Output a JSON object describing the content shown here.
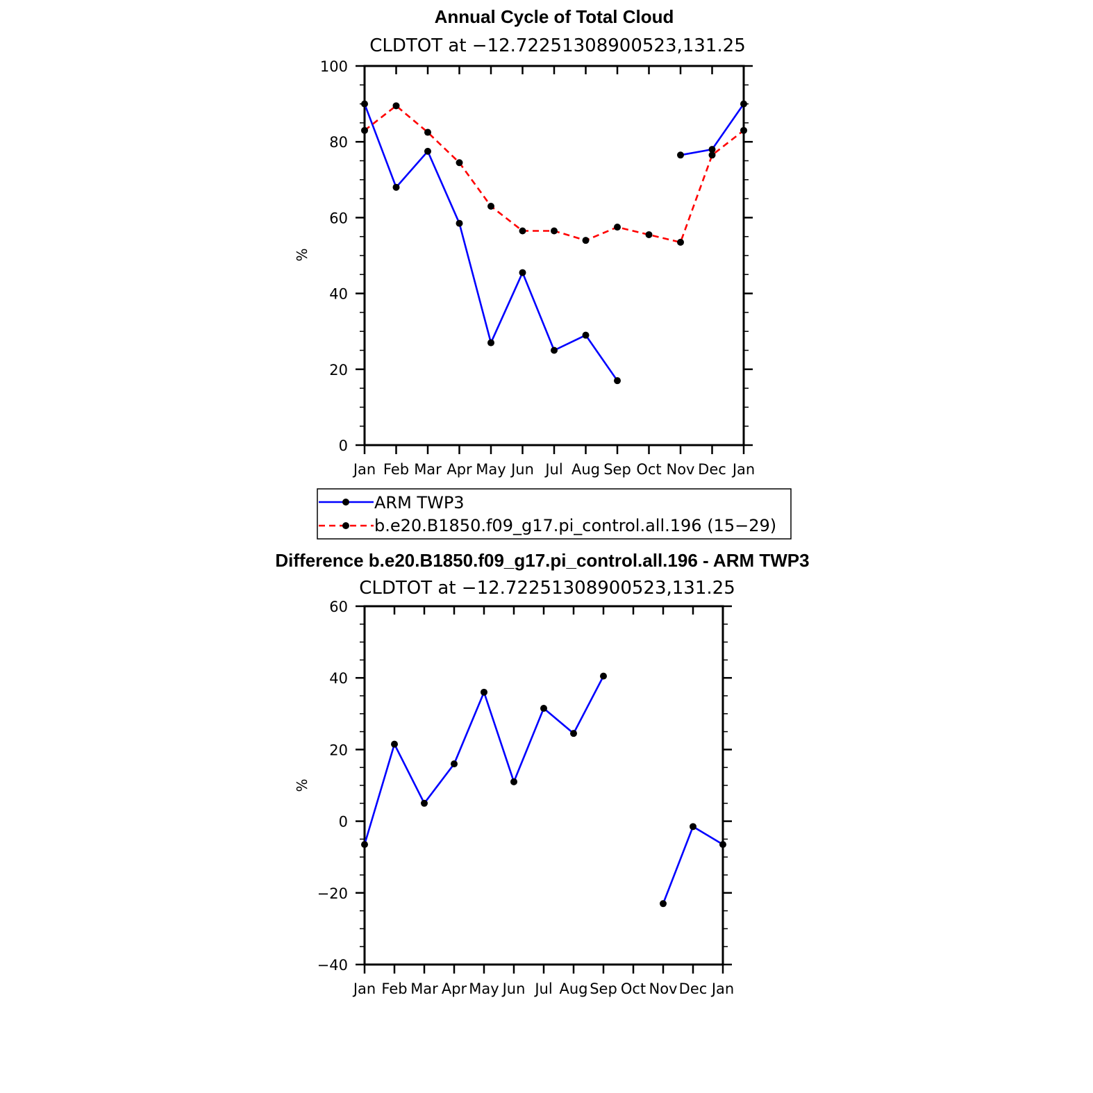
{
  "chart_data": [
    {
      "type": "line",
      "title": "Annual Cycle of Total Cloud",
      "subtitle": "CLDTOT at −12.72251308900523,131.25",
      "ylabel": "%",
      "categories": [
        "Jan",
        "Feb",
        "Mar",
        "Apr",
        "May",
        "Jun",
        "Jul",
        "Aug",
        "Sep",
        "Oct",
        "Nov",
        "Dec",
        "Jan"
      ],
      "ylim": [
        0,
        100
      ],
      "yticks": [
        0,
        20,
        40,
        60,
        80,
        100
      ],
      "ytick_labels": [
        "0",
        "20",
        "40",
        "60",
        "80",
        "100"
      ],
      "series": [
        {
          "name": "ARM TWP3",
          "color": "#0000ff",
          "dash": "solid",
          "values": [
            90,
            68,
            77.5,
            58.5,
            27,
            45.5,
            25,
            29,
            17,
            null,
            76.5,
            78,
            90
          ]
        },
        {
          "name": "b.e20.B1850.f09_g17.pi_control.all.196 (15−29)",
          "color": "#ff0000",
          "dash": "dashed",
          "values": [
            83,
            89.5,
            82.5,
            74.5,
            63,
            56.5,
            56.5,
            54,
            57.5,
            55.5,
            53.5,
            76.5,
            83
          ]
        }
      ],
      "legend_position": "below"
    },
    {
      "type": "line",
      "title": "Difference b.e20.B1850.f09_g17.pi_control.all.196 - ARM TWP3",
      "subtitle": "CLDTOT at −12.72251308900523,131.25",
      "ylabel": "%",
      "categories": [
        "Jan",
        "Feb",
        "Mar",
        "Apr",
        "May",
        "Jun",
        "Jul",
        "Aug",
        "Sep",
        "Oct",
        "Nov",
        "Dec",
        "Jan"
      ],
      "ylim": [
        -40,
        60
      ],
      "yticks": [
        -40,
        -20,
        0,
        20,
        40,
        60
      ],
      "ytick_labels": [
        "−40",
        "−20",
        "0",
        "20",
        "40",
        "60"
      ],
      "series": [
        {
          "color": "#0000ff",
          "dash": "solid",
          "values": [
            -6.5,
            21.5,
            5,
            16,
            36,
            11,
            31.5,
            24.5,
            40.5,
            null,
            -23,
            -1.5,
            -6.5
          ]
        }
      ]
    }
  ]
}
